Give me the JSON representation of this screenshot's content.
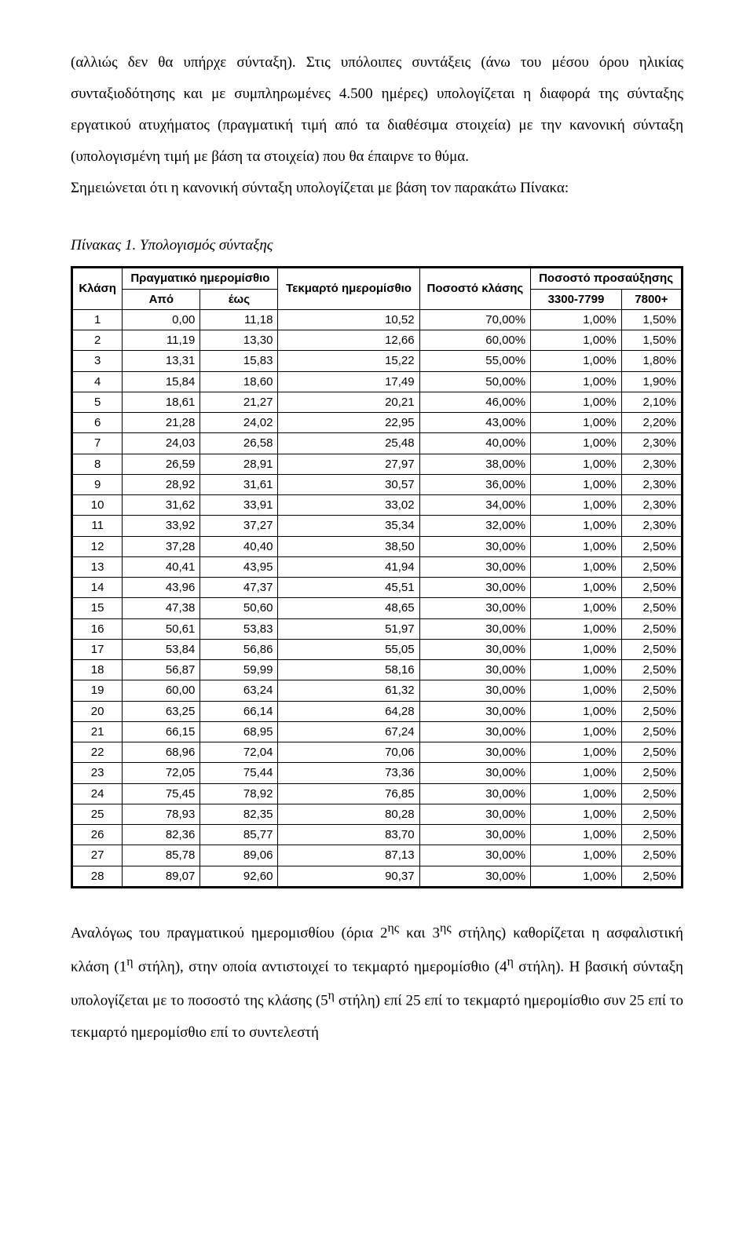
{
  "para_top_1": "(αλλιώς δεν θα υπήρχε σύνταξη). Στις υπόλοιπες συντάξεις (άνω του μέσου όρου ηλικίας συνταξιοδότησης και με συμπληρωμένες 4.500 ημέρες) υπολογίζεται η διαφορά της σύνταξης εργατικού ατυχήματος (πραγματική τιμή από τα διαθέσιμα στοιχεία) με την κανονική σύνταξη (υπολογισμένη τιμή με βάση τα στοιχεία) που θα έπαιρνε το θύμα.",
  "para_top_2": "Σημειώνεται ότι η κανονική σύνταξη υπολογίζεται με βάση τον παρακάτω Πίνακα:",
  "caption": "Πίνακας 1. Υπολογισμός σύνταξης",
  "table": {
    "head": {
      "klasi": "Κλάση",
      "pragmatiko": "Πραγματικό ημερομίσθιο",
      "apo": "Από",
      "eos": "έως",
      "tekmarto": "Τεκμαρτό ημερομίσθιο",
      "pososto_klasis": "Ποσοστό κλάσης",
      "pososto_pros": "Ποσοστό προσαύξησης",
      "range1": "3300-7799",
      "range2": "7800+"
    },
    "rows": [
      {
        "k": "1",
        "a": "0,00",
        "e": "11,18",
        "t": "10,52",
        "p": "70,00%",
        "r1": "1,00%",
        "r2": "1,50%"
      },
      {
        "k": "2",
        "a": "11,19",
        "e": "13,30",
        "t": "12,66",
        "p": "60,00%",
        "r1": "1,00%",
        "r2": "1,50%"
      },
      {
        "k": "3",
        "a": "13,31",
        "e": "15,83",
        "t": "15,22",
        "p": "55,00%",
        "r1": "1,00%",
        "r2": "1,80%"
      },
      {
        "k": "4",
        "a": "15,84",
        "e": "18,60",
        "t": "17,49",
        "p": "50,00%",
        "r1": "1,00%",
        "r2": "1,90%"
      },
      {
        "k": "5",
        "a": "18,61",
        "e": "21,27",
        "t": "20,21",
        "p": "46,00%",
        "r1": "1,00%",
        "r2": "2,10%"
      },
      {
        "k": "6",
        "a": "21,28",
        "e": "24,02",
        "t": "22,95",
        "p": "43,00%",
        "r1": "1,00%",
        "r2": "2,20%"
      },
      {
        "k": "7",
        "a": "24,03",
        "e": "26,58",
        "t": "25,48",
        "p": "40,00%",
        "r1": "1,00%",
        "r2": "2,30%"
      },
      {
        "k": "8",
        "a": "26,59",
        "e": "28,91",
        "t": "27,97",
        "p": "38,00%",
        "r1": "1,00%",
        "r2": "2,30%"
      },
      {
        "k": "9",
        "a": "28,92",
        "e": "31,61",
        "t": "30,57",
        "p": "36,00%",
        "r1": "1,00%",
        "r2": "2,30%"
      },
      {
        "k": "10",
        "a": "31,62",
        "e": "33,91",
        "t": "33,02",
        "p": "34,00%",
        "r1": "1,00%",
        "r2": "2,30%"
      },
      {
        "k": "11",
        "a": "33,92",
        "e": "37,27",
        "t": "35,34",
        "p": "32,00%",
        "r1": "1,00%",
        "r2": "2,30%"
      },
      {
        "k": "12",
        "a": "37,28",
        "e": "40,40",
        "t": "38,50",
        "p": "30,00%",
        "r1": "1,00%",
        "r2": "2,50%"
      },
      {
        "k": "13",
        "a": "40,41",
        "e": "43,95",
        "t": "41,94",
        "p": "30,00%",
        "r1": "1,00%",
        "r2": "2,50%"
      },
      {
        "k": "14",
        "a": "43,96",
        "e": "47,37",
        "t": "45,51",
        "p": "30,00%",
        "r1": "1,00%",
        "r2": "2,50%"
      },
      {
        "k": "15",
        "a": "47,38",
        "e": "50,60",
        "t": "48,65",
        "p": "30,00%",
        "r1": "1,00%",
        "r2": "2,50%"
      },
      {
        "k": "16",
        "a": "50,61",
        "e": "53,83",
        "t": "51,97",
        "p": "30,00%",
        "r1": "1,00%",
        "r2": "2,50%"
      },
      {
        "k": "17",
        "a": "53,84",
        "e": "56,86",
        "t": "55,05",
        "p": "30,00%",
        "r1": "1,00%",
        "r2": "2,50%"
      },
      {
        "k": "18",
        "a": "56,87",
        "e": "59,99",
        "t": "58,16",
        "p": "30,00%",
        "r1": "1,00%",
        "r2": "2,50%"
      },
      {
        "k": "19",
        "a": "60,00",
        "e": "63,24",
        "t": "61,32",
        "p": "30,00%",
        "r1": "1,00%",
        "r2": "2,50%"
      },
      {
        "k": "20",
        "a": "63,25",
        "e": "66,14",
        "t": "64,28",
        "p": "30,00%",
        "r1": "1,00%",
        "r2": "2,50%"
      },
      {
        "k": "21",
        "a": "66,15",
        "e": "68,95",
        "t": "67,24",
        "p": "30,00%",
        "r1": "1,00%",
        "r2": "2,50%"
      },
      {
        "k": "22",
        "a": "68,96",
        "e": "72,04",
        "t": "70,06",
        "p": "30,00%",
        "r1": "1,00%",
        "r2": "2,50%"
      },
      {
        "k": "23",
        "a": "72,05",
        "e": "75,44",
        "t": "73,36",
        "p": "30,00%",
        "r1": "1,00%",
        "r2": "2,50%"
      },
      {
        "k": "24",
        "a": "75,45",
        "e": "78,92",
        "t": "76,85",
        "p": "30,00%",
        "r1": "1,00%",
        "r2": "2,50%"
      },
      {
        "k": "25",
        "a": "78,93",
        "e": "82,35",
        "t": "80,28",
        "p": "30,00%",
        "r1": "1,00%",
        "r2": "2,50%"
      },
      {
        "k": "26",
        "a": "82,36",
        "e": "85,77",
        "t": "83,70",
        "p": "30,00%",
        "r1": "1,00%",
        "r2": "2,50%"
      },
      {
        "k": "27",
        "a": "85,78",
        "e": "89,06",
        "t": "87,13",
        "p": "30,00%",
        "r1": "1,00%",
        "r2": "2,50%"
      },
      {
        "k": "28",
        "a": "89,07",
        "e": "92,60",
        "t": "90,37",
        "p": "30,00%",
        "r1": "1,00%",
        "r2": "2,50%"
      }
    ]
  },
  "para_bottom_a": "Αναλόγως του πραγματικού ημερομισθίου (όρια 2",
  "sup_hs1": "ης",
  "para_bottom_b": " και 3",
  "sup_hs2": "ης",
  "para_bottom_c": " στήλης) καθορίζεται η ασφαλιστική κλάση (1",
  "sup_h1": "η",
  "para_bottom_d": " στήλη), στην οποία αντιστοιχεί το τεκμαρτό ημερομίσθιο (4",
  "sup_h2": "η",
  "para_bottom_e": " στήλη). Η βασική σύνταξη υπολογίζεται με το ποσοστό της κλάσης (5",
  "sup_h3": "η",
  "para_bottom_f": " στήλη) επί 25 επί το τεκμαρτό ημερομίσθιο συν 25 επί το τεκμαρτό ημερομίσθιο επί το συντελεστή"
}
